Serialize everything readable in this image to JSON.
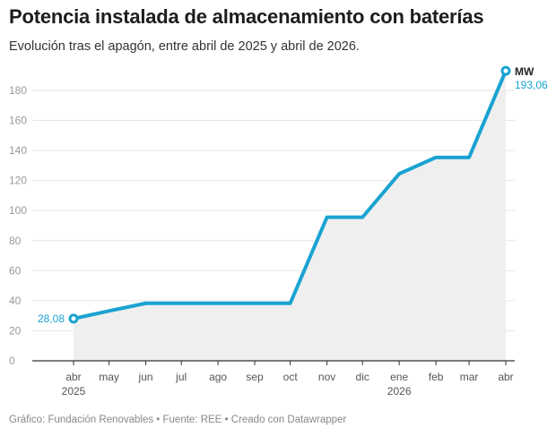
{
  "header": {
    "title": "Potencia instalada de almacenamiento con baterías",
    "subtitle": "Evolución tras el apagón, entre abril de 2025 y abril de 2026."
  },
  "footer": "Gráfico: Fundación Renovables • Fuente: REE • Creado con Datawrapper",
  "colors": {
    "line": "#1aa3d1",
    "area": "#efefef",
    "grid": "#e6e6e6"
  },
  "chart_data": {
    "type": "area",
    "title": "Potencia instalada de almacenamiento con baterías",
    "unit_label": "MW",
    "x": [
      "2025-04-01",
      "2025-05-01",
      "2025-06-01",
      "2025-07-01",
      "2025-08-01",
      "2025-09-01",
      "2025-10-01",
      "2025-11-01",
      "2025-12-01",
      "2026-01-01",
      "2026-02-01",
      "2026-03-01",
      "2026-04-01"
    ],
    "x_tick_labels": [
      [
        "abr",
        "2025"
      ],
      [
        "may",
        ""
      ],
      [
        "jun",
        ""
      ],
      [
        "jul",
        ""
      ],
      [
        "ago",
        ""
      ],
      [
        "sep",
        ""
      ],
      [
        "oct",
        ""
      ],
      [
        "nov",
        ""
      ],
      [
        "dic",
        ""
      ],
      [
        "ene",
        "2026"
      ],
      [
        "feb",
        ""
      ],
      [
        "mar",
        ""
      ],
      [
        "abr",
        ""
      ]
    ],
    "values": [
      28.08,
      33.2,
      38.3,
      38.3,
      38.3,
      38.3,
      38.3,
      95.6,
      95.6,
      124.5,
      135.4,
      135.4,
      193.06
    ],
    "annotations": {
      "first": "28,08",
      "last": "193,06"
    },
    "ylim": [
      0,
      193.06
    ],
    "yticks": [
      0,
      20,
      40,
      60,
      80,
      100,
      120,
      140,
      160,
      180
    ],
    "grid": true
  }
}
